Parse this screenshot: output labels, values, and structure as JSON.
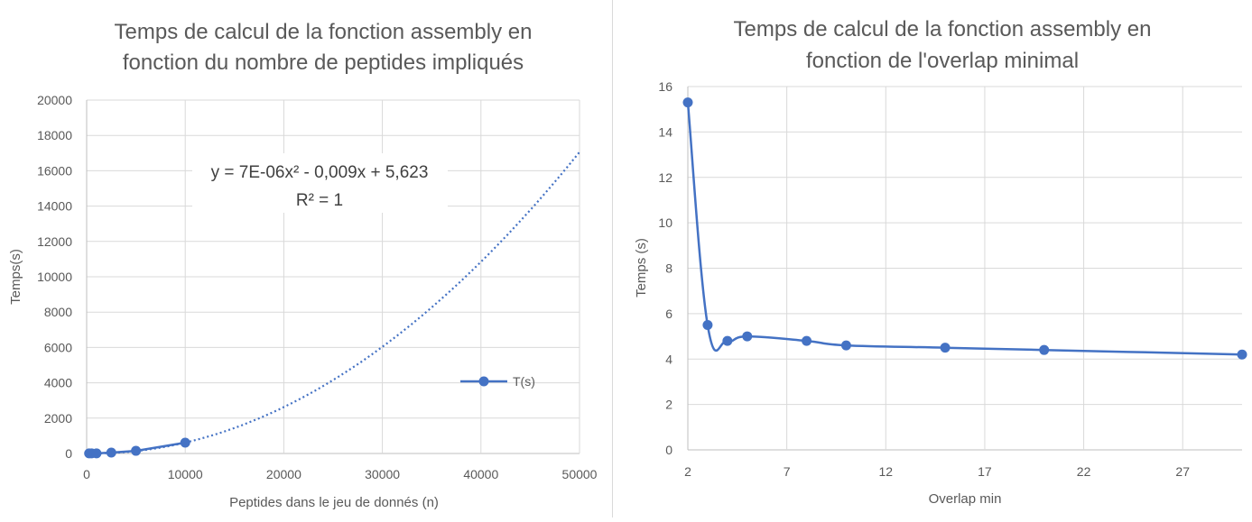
{
  "chart_data": [
    {
      "type": "scatter",
      "title_line1": "Temps de calcul de la fonction assembly en",
      "title_line2": "fonction du nombre de peptides impliqués",
      "xlabel": "Peptides dans le jeu de donnés (n)",
      "ylabel": "Temps(s)",
      "xlim": [
        0,
        50000
      ],
      "ylim": [
        0,
        20000
      ],
      "x_ticks": [
        "0",
        "10000",
        "20000",
        "30000",
        "40000",
        "50000"
      ],
      "y_ticks": [
        "0",
        "2000",
        "4000",
        "6000",
        "8000",
        "10000",
        "12000",
        "14000",
        "16000",
        "18000",
        "20000"
      ],
      "grid": true,
      "legend_position": "right",
      "color": "#4472c4",
      "series": [
        {
          "name": "T(s)",
          "x": [
            250,
            500,
            1000,
            2500,
            5000,
            10000
          ],
          "y": [
            5,
            5,
            5,
            50,
            150,
            610
          ]
        }
      ],
      "trendline": {
        "type": "polynomial",
        "degree": 2,
        "style": "dotted",
        "coefficients": [
          7e-06,
          -0.009,
          5.623
        ],
        "x_range": [
          0,
          50000
        ]
      },
      "annotation": {
        "equation": "y = 7E-06x² - 0,009x + 5,623",
        "r2": "R² = 1"
      }
    },
    {
      "type": "line",
      "title_line1": "Temps de calcul de la fonction assembly en",
      "title_line2": "fonction de l'overlap minimal",
      "xlabel": "Overlap min",
      "ylabel": "Temps (s)",
      "xlim": [
        2,
        30
      ],
      "ylim": [
        0,
        16
      ],
      "x_ticks": [
        "2",
        "7",
        "12",
        "17",
        "22",
        "27"
      ],
      "y_ticks": [
        "0",
        "2",
        "4",
        "6",
        "8",
        "10",
        "12",
        "14",
        "16"
      ],
      "grid": true,
      "smooth": true,
      "color": "#4472c4",
      "series": [
        {
          "x": [
            2,
            3,
            4,
            5,
            8,
            10,
            15,
            20,
            30
          ],
          "y": [
            15.3,
            5.5,
            4.8,
            5.0,
            4.8,
            4.6,
            4.5,
            4.4,
            4.2
          ]
        }
      ]
    }
  ]
}
